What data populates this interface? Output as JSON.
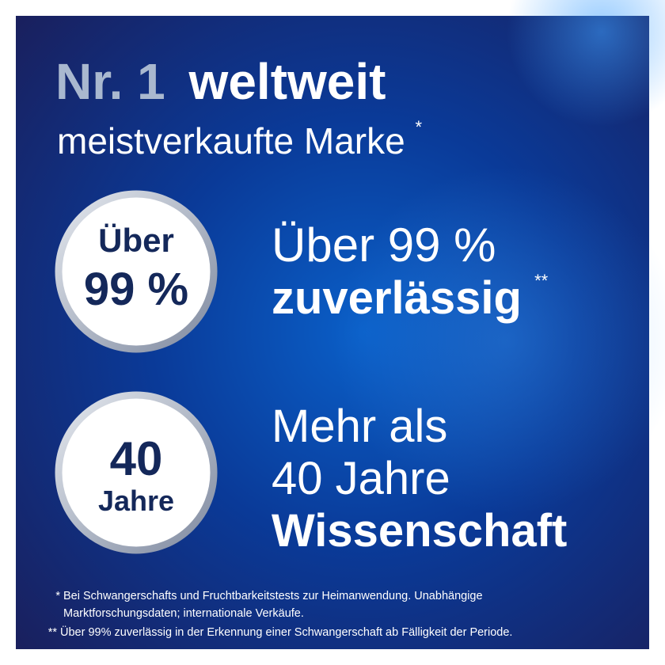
{
  "headline": {
    "highlight": "Nr. 1",
    "main": "weltweit",
    "subline": "meistverkaufte Marke",
    "subline_mark": "*"
  },
  "badges": [
    {
      "line1": "Über",
      "line2": "99 %"
    },
    {
      "line1": "40",
      "line2": "Jahre"
    }
  ],
  "claims": [
    {
      "lines": [
        "Über 99 %",
        "zuverlässig"
      ],
      "mark": "**"
    },
    {
      "lines": [
        "Mehr als",
        "40 Jahre",
        "Wissenschaft"
      ]
    }
  ],
  "footnotes": [
    {
      "mark": "*",
      "lines": [
        "Bei Schwangerschafts und Fruchtbarkeitstests zur Heimanwendung. Unabhängige",
        "Marktforschungsdaten; internationale Verkäufe."
      ]
    },
    {
      "mark": "**",
      "lines": [
        "Über 99% zuverlässig in der Erkennung einer Schwangerschaft ab Fälligkeit der Periode."
      ]
    }
  ]
}
